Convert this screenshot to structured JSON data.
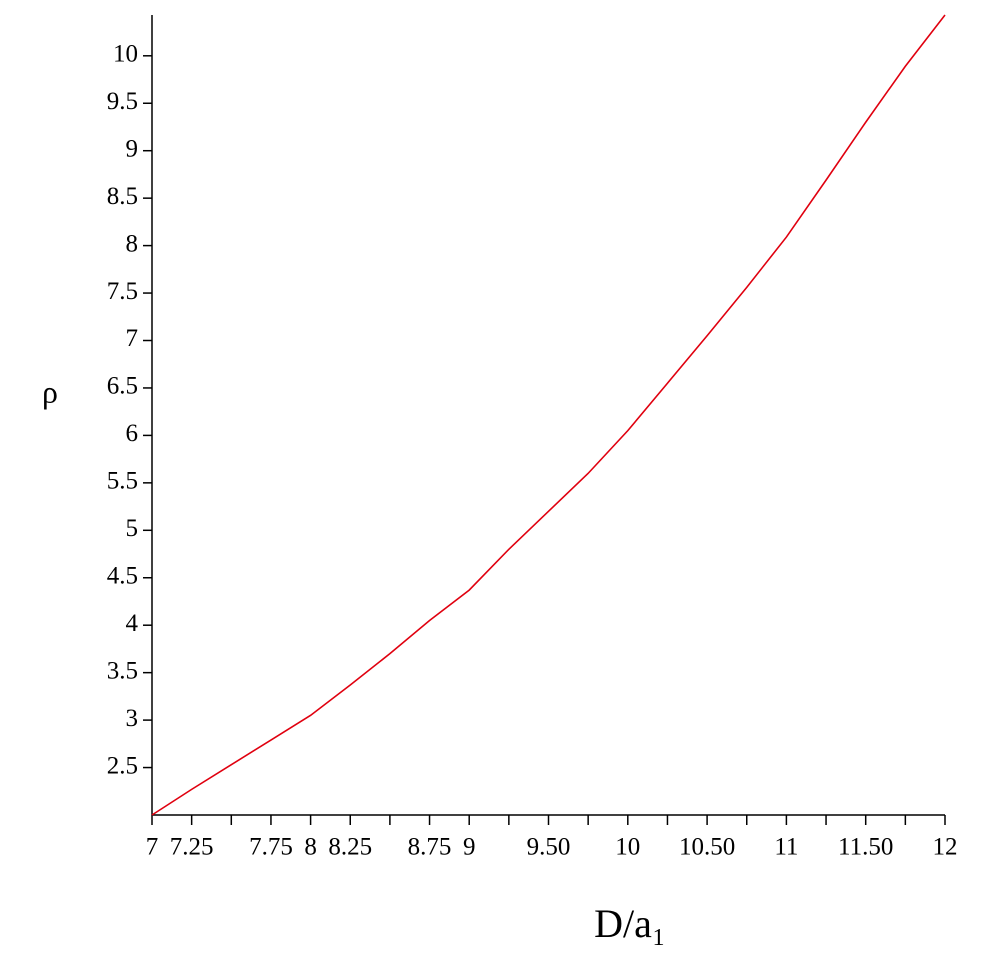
{
  "chart_data": {
    "type": "line",
    "xlabel": "D/a₁",
    "ylabel": "ρ",
    "xlim": [
      7,
      12
    ],
    "ylim": [
      2,
      10.43
    ],
    "xticks": [
      7,
      7.25,
      {
        "value": 7.5,
        "label": null
      },
      7.75,
      8,
      8.25,
      {
        "value": 8.5,
        "label": null
      },
      8.75,
      9,
      {
        "value": 9.25,
        "label": null
      },
      {
        "value": 9.5,
        "label": "9.50"
      },
      {
        "value": 9.75,
        "label": null
      },
      10,
      {
        "value": 10.25,
        "label": null
      },
      {
        "value": 10.5,
        "label": "10.50"
      },
      {
        "value": 10.75,
        "label": null
      },
      11,
      {
        "value": 11.25,
        "label": null
      },
      {
        "value": 11.5,
        "label": "11.50"
      },
      {
        "value": 11.75,
        "label": null
      },
      12
    ],
    "yticks": [
      2.5,
      3,
      3.5,
      4,
      4.5,
      5,
      5.5,
      6,
      6.5,
      7,
      7.5,
      8,
      8.5,
      9,
      9.5,
      10
    ],
    "series": [
      {
        "color": "#e0000f",
        "x": [
          7,
          7.25,
          7.5,
          7.75,
          8,
          8.25,
          8.5,
          8.75,
          9,
          9.25,
          9.5,
          9.75,
          10,
          10.25,
          10.5,
          10.75,
          11,
          11.25,
          11.5,
          11.75,
          12
        ],
        "values": [
          2,
          2.27,
          2.53,
          2.79,
          3.05,
          3.37,
          3.7,
          4.05,
          4.37,
          4.8,
          5.2,
          5.6,
          6.05,
          6.55,
          7.05,
          7.56,
          8.09,
          8.69,
          9.3,
          9.89,
          10.43
        ]
      }
    ]
  }
}
